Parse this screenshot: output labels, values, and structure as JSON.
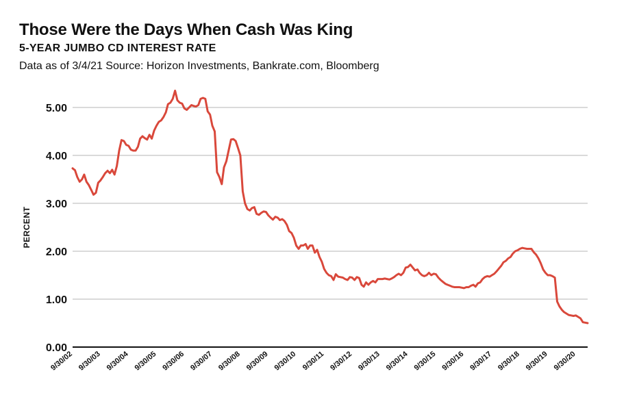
{
  "header": {
    "title": "Those Were the Days When Cash Was King",
    "subtitle": "5-YEAR JUMBO CD INTEREST RATE",
    "source": "Data as of 3/4/21  Source: Horizon Investments, Bankrate.com, Bloomberg"
  },
  "colors": {
    "line": "#d9483b",
    "grid": "#b5b5b5",
    "axis": "#111111"
  },
  "chart_data": {
    "type": "line",
    "title": "Those Were the Days When Cash Was King",
    "subtitle": "5-YEAR JUMBO CD INTEREST RATE",
    "xlabel": "",
    "ylabel": "PERCENT",
    "ylim": [
      0,
      5
    ],
    "xlim": [
      "9/30/02",
      "3/4/21"
    ],
    "yticks": [
      "0.00",
      "1.00",
      "2.00",
      "3.00",
      "4.00",
      "5.00"
    ],
    "xticks": [
      "9/30/02",
      "9/30/03",
      "9/30/04",
      "9/30/05",
      "9/30/06",
      "9/30/07",
      "9/30/08",
      "9/30/09",
      "9/30/10",
      "9/30/11",
      "9/30/12",
      "9/30/13",
      "9/30/14",
      "9/30/15",
      "9/30/16",
      "9/30/17",
      "9/30/18",
      "9/30/19",
      "9/30/20"
    ],
    "grid": "horizontal",
    "series": [
      {
        "values": [
          [
            "2002-09-30",
            3.73
          ],
          [
            "2002-10-31",
            3.69
          ],
          [
            "2002-11-30",
            3.55
          ],
          [
            "2002-12-31",
            3.45
          ],
          [
            "2003-01-31",
            3.5
          ],
          [
            "2003-02-28",
            3.6
          ],
          [
            "2003-03-31",
            3.45
          ],
          [
            "2003-04-30",
            3.38
          ],
          [
            "2003-05-31",
            3.28
          ],
          [
            "2003-06-30",
            3.18
          ],
          [
            "2003-07-31",
            3.22
          ],
          [
            "2003-08-31",
            3.43
          ],
          [
            "2003-09-30",
            3.48
          ],
          [
            "2003-10-31",
            3.55
          ],
          [
            "2003-11-30",
            3.63
          ],
          [
            "2003-12-31",
            3.68
          ],
          [
            "2004-01-31",
            3.63
          ],
          [
            "2004-02-29",
            3.7
          ],
          [
            "2004-03-31",
            3.6
          ],
          [
            "2004-04-30",
            3.78
          ],
          [
            "2004-05-31",
            4.1
          ],
          [
            "2004-06-30",
            4.32
          ],
          [
            "2004-07-31",
            4.3
          ],
          [
            "2004-08-31",
            4.22
          ],
          [
            "2004-09-30",
            4.2
          ],
          [
            "2004-10-31",
            4.12
          ],
          [
            "2004-11-30",
            4.1
          ],
          [
            "2004-12-31",
            4.1
          ],
          [
            "2005-01-31",
            4.18
          ],
          [
            "2005-02-28",
            4.35
          ],
          [
            "2005-03-31",
            4.4
          ],
          [
            "2005-04-30",
            4.36
          ],
          [
            "2005-05-31",
            4.33
          ],
          [
            "2005-06-30",
            4.43
          ],
          [
            "2005-07-31",
            4.35
          ],
          [
            "2005-08-31",
            4.52
          ],
          [
            "2005-09-30",
            4.62
          ],
          [
            "2005-10-31",
            4.7
          ],
          [
            "2005-11-30",
            4.73
          ],
          [
            "2005-12-31",
            4.8
          ],
          [
            "2006-01-31",
            4.9
          ],
          [
            "2006-02-28",
            5.07
          ],
          [
            "2006-03-31",
            5.1
          ],
          [
            "2006-04-30",
            5.18
          ],
          [
            "2006-05-31",
            5.35
          ],
          [
            "2006-06-30",
            5.15
          ],
          [
            "2006-07-31",
            5.1
          ],
          [
            "2006-08-31",
            5.08
          ],
          [
            "2006-09-30",
            4.98
          ],
          [
            "2006-10-31",
            4.95
          ],
          [
            "2006-11-30",
            5.0
          ],
          [
            "2006-12-31",
            5.05
          ],
          [
            "2007-01-31",
            5.03
          ],
          [
            "2007-02-28",
            5.02
          ],
          [
            "2007-03-31",
            5.05
          ],
          [
            "2007-04-30",
            5.18
          ],
          [
            "2007-05-31",
            5.2
          ],
          [
            "2007-06-30",
            5.18
          ],
          [
            "2007-07-31",
            4.92
          ],
          [
            "2007-08-31",
            4.85
          ],
          [
            "2007-09-30",
            4.62
          ],
          [
            "2007-10-31",
            4.5
          ],
          [
            "2007-11-30",
            3.65
          ],
          [
            "2007-12-31",
            3.55
          ],
          [
            "2008-01-31",
            3.4
          ],
          [
            "2008-02-29",
            3.75
          ],
          [
            "2008-03-31",
            3.88
          ],
          [
            "2008-04-30",
            4.1
          ],
          [
            "2008-05-31",
            4.33
          ],
          [
            "2008-06-30",
            4.34
          ],
          [
            "2008-07-31",
            4.3
          ],
          [
            "2008-08-31",
            4.15
          ],
          [
            "2008-09-30",
            4.0
          ],
          [
            "2008-10-31",
            3.25
          ],
          [
            "2008-11-30",
            3.0
          ],
          [
            "2008-12-31",
            2.88
          ],
          [
            "2009-01-31",
            2.85
          ],
          [
            "2009-02-28",
            2.9
          ],
          [
            "2009-03-31",
            2.92
          ],
          [
            "2009-04-30",
            2.78
          ],
          [
            "2009-05-31",
            2.76
          ],
          [
            "2009-06-30",
            2.8
          ],
          [
            "2009-07-31",
            2.83
          ],
          [
            "2009-08-31",
            2.82
          ],
          [
            "2009-09-30",
            2.75
          ],
          [
            "2009-10-31",
            2.7
          ],
          [
            "2009-11-30",
            2.66
          ],
          [
            "2009-12-31",
            2.72
          ],
          [
            "2010-01-31",
            2.7
          ],
          [
            "2010-02-28",
            2.65
          ],
          [
            "2010-03-31",
            2.67
          ],
          [
            "2010-04-30",
            2.63
          ],
          [
            "2010-05-31",
            2.55
          ],
          [
            "2010-06-30",
            2.42
          ],
          [
            "2010-07-31",
            2.38
          ],
          [
            "2010-08-31",
            2.28
          ],
          [
            "2010-09-30",
            2.12
          ],
          [
            "2010-10-31",
            2.05
          ],
          [
            "2010-11-30",
            2.12
          ],
          [
            "2010-12-31",
            2.12
          ],
          [
            "2011-01-31",
            2.15
          ],
          [
            "2011-02-28",
            2.05
          ],
          [
            "2011-03-31",
            2.12
          ],
          [
            "2011-04-30",
            2.12
          ],
          [
            "2011-05-31",
            1.97
          ],
          [
            "2011-06-30",
            2.03
          ],
          [
            "2011-07-31",
            1.88
          ],
          [
            "2011-08-31",
            1.78
          ],
          [
            "2011-09-30",
            1.63
          ],
          [
            "2011-10-31",
            1.55
          ],
          [
            "2011-11-30",
            1.5
          ],
          [
            "2011-12-31",
            1.48
          ],
          [
            "2012-01-31",
            1.4
          ],
          [
            "2012-02-29",
            1.52
          ],
          [
            "2012-03-31",
            1.47
          ],
          [
            "2012-04-30",
            1.46
          ],
          [
            "2012-05-31",
            1.45
          ],
          [
            "2012-06-30",
            1.42
          ],
          [
            "2012-07-31",
            1.4
          ],
          [
            "2012-08-31",
            1.46
          ],
          [
            "2012-09-30",
            1.45
          ],
          [
            "2012-10-31",
            1.4
          ],
          [
            "2012-11-30",
            1.46
          ],
          [
            "2012-12-31",
            1.44
          ],
          [
            "2013-01-31",
            1.3
          ],
          [
            "2013-02-28",
            1.26
          ],
          [
            "2013-03-31",
            1.35
          ],
          [
            "2013-04-30",
            1.3
          ],
          [
            "2013-05-31",
            1.35
          ],
          [
            "2013-06-30",
            1.38
          ],
          [
            "2013-07-31",
            1.35
          ],
          [
            "2013-08-31",
            1.42
          ],
          [
            "2013-09-30",
            1.42
          ],
          [
            "2013-10-31",
            1.42
          ],
          [
            "2013-11-30",
            1.43
          ],
          [
            "2013-12-31",
            1.42
          ],
          [
            "2014-01-31",
            1.41
          ],
          [
            "2014-02-28",
            1.43
          ],
          [
            "2014-03-31",
            1.46
          ],
          [
            "2014-04-30",
            1.5
          ],
          [
            "2014-05-31",
            1.53
          ],
          [
            "2014-06-30",
            1.5
          ],
          [
            "2014-07-31",
            1.55
          ],
          [
            "2014-08-31",
            1.66
          ],
          [
            "2014-09-30",
            1.67
          ],
          [
            "2014-10-31",
            1.72
          ],
          [
            "2014-11-30",
            1.66
          ],
          [
            "2014-12-31",
            1.6
          ],
          [
            "2015-01-31",
            1.62
          ],
          [
            "2015-02-28",
            1.55
          ],
          [
            "2015-03-31",
            1.5
          ],
          [
            "2015-04-30",
            1.48
          ],
          [
            "2015-05-31",
            1.5
          ],
          [
            "2015-06-30",
            1.55
          ],
          [
            "2015-07-31",
            1.5
          ],
          [
            "2015-08-31",
            1.53
          ],
          [
            "2015-09-30",
            1.52
          ],
          [
            "2015-10-31",
            1.45
          ],
          [
            "2015-11-30",
            1.4
          ],
          [
            "2015-12-31",
            1.36
          ],
          [
            "2016-01-31",
            1.32
          ],
          [
            "2016-02-29",
            1.3
          ],
          [
            "2016-03-31",
            1.28
          ],
          [
            "2016-04-30",
            1.26
          ],
          [
            "2016-05-31",
            1.25
          ],
          [
            "2016-06-30",
            1.25
          ],
          [
            "2016-07-31",
            1.25
          ],
          [
            "2016-08-31",
            1.24
          ],
          [
            "2016-09-30",
            1.23
          ],
          [
            "2016-10-31",
            1.25
          ],
          [
            "2016-11-30",
            1.25
          ],
          [
            "2016-12-31",
            1.28
          ],
          [
            "2017-01-31",
            1.3
          ],
          [
            "2017-02-28",
            1.26
          ],
          [
            "2017-03-31",
            1.33
          ],
          [
            "2017-04-30",
            1.35
          ],
          [
            "2017-05-31",
            1.42
          ],
          [
            "2017-06-30",
            1.46
          ],
          [
            "2017-07-31",
            1.48
          ],
          [
            "2017-08-31",
            1.47
          ],
          [
            "2017-09-30",
            1.5
          ],
          [
            "2017-10-31",
            1.53
          ],
          [
            "2017-11-30",
            1.58
          ],
          [
            "2017-12-31",
            1.64
          ],
          [
            "2018-01-31",
            1.7
          ],
          [
            "2018-02-28",
            1.77
          ],
          [
            "2018-03-31",
            1.8
          ],
          [
            "2018-04-30",
            1.85
          ],
          [
            "2018-05-31",
            1.88
          ],
          [
            "2018-06-30",
            1.95
          ],
          [
            "2018-07-31",
            2.0
          ],
          [
            "2018-08-31",
            2.02
          ],
          [
            "2018-09-30",
            2.05
          ],
          [
            "2018-10-31",
            2.07
          ],
          [
            "2018-11-30",
            2.06
          ],
          [
            "2018-12-31",
            2.05
          ],
          [
            "2019-01-31",
            2.05
          ],
          [
            "2019-02-28",
            2.05
          ],
          [
            "2019-03-31",
            1.98
          ],
          [
            "2019-04-30",
            1.93
          ],
          [
            "2019-05-31",
            1.85
          ],
          [
            "2019-06-30",
            1.75
          ],
          [
            "2019-07-31",
            1.62
          ],
          [
            "2019-08-31",
            1.55
          ],
          [
            "2019-09-30",
            1.5
          ],
          [
            "2019-10-31",
            1.5
          ],
          [
            "2019-11-30",
            1.48
          ],
          [
            "2019-12-31",
            1.45
          ],
          [
            "2020-01-31",
            0.95
          ],
          [
            "2020-02-29",
            0.85
          ],
          [
            "2020-03-31",
            0.78
          ],
          [
            "2020-04-30",
            0.73
          ],
          [
            "2020-05-31",
            0.7
          ],
          [
            "2020-06-30",
            0.67
          ],
          [
            "2020-07-31",
            0.66
          ],
          [
            "2020-08-31",
            0.65
          ],
          [
            "2020-09-30",
            0.66
          ],
          [
            "2020-10-31",
            0.63
          ],
          [
            "2020-11-30",
            0.6
          ],
          [
            "2020-12-31",
            0.52
          ],
          [
            "2021-01-31",
            0.51
          ],
          [
            "2021-03-04",
            0.5
          ]
        ]
      }
    ]
  }
}
